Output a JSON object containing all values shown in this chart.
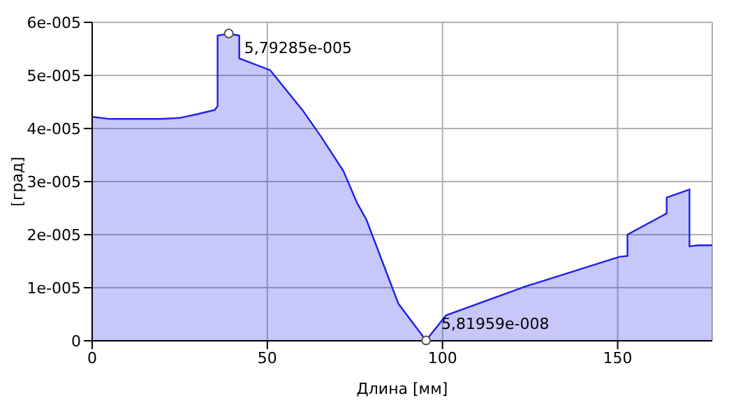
{
  "chart_data": {
    "type": "area",
    "xlabel": "Длина [мм]",
    "ylabel": "[град]",
    "x": [
      0,
      5,
      10,
      20,
      25,
      30,
      35,
      35.8,
      35.8,
      39,
      42,
      42,
      50.8,
      60,
      65.3,
      71.7,
      75.6,
      78.3,
      87.4,
      95.3,
      101,
      124,
      150.4,
      152.8,
      152.8,
      164,
      164,
      170.5,
      170.5,
      173,
      177
    ],
    "series": [
      {
        "color": "#2020e8",
        "values": [
          4.22e-05,
          4.18e-05,
          4.18e-05,
          4.18e-05,
          4.2e-05,
          4.27e-05,
          4.35e-05,
          4.42e-05,
          5.75e-05,
          5.79e-05,
          5.75e-05,
          5.32e-05,
          5.1e-05,
          4.35e-05,
          3.85e-05,
          3.2e-05,
          2.6e-05,
          2.28e-05,
          7e-06,
          5.82e-08,
          4.8e-06,
          1.03e-05,
          1.58e-05,
          1.6e-05,
          2e-05,
          2.4e-05,
          2.7e-05,
          2.85e-05,
          1.78e-05,
          1.8e-05,
          1.8e-05
        ]
      }
    ],
    "xlim": [
      0,
      177
    ],
    "xticks": [
      0,
      50,
      100,
      150
    ],
    "ylim": [
      0,
      6e-05
    ],
    "yticks": [
      0,
      {
        "value": 1e-05,
        "label": "1e-005"
      },
      {
        "value": 2e-05,
        "label": "2e-005"
      },
      {
        "value": 3e-05,
        "label": "3e-005"
      },
      {
        "value": 4e-05,
        "label": "4e-005"
      },
      {
        "value": 5e-05,
        "label": "5e-005"
      },
      {
        "value": 6e-05,
        "label": "6e-005"
      }
    ],
    "grid": true,
    "annotations": [
      {
        "text": "5,79285e-005",
        "x": 39,
        "y": 5.79e-05
      },
      {
        "text": "5,81959e-008",
        "x": 95.3,
        "y": 5.82e-08
      }
    ]
  }
}
